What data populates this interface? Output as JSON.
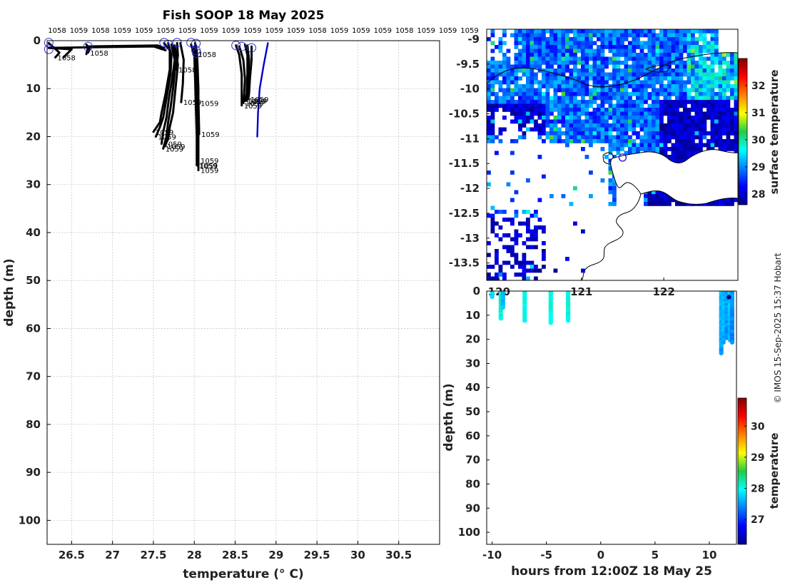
{
  "title": "Fish SOOP 18 May 2025",
  "credit": "© IMOS 15-Sep-2025 15:37 Hobart",
  "colors": {
    "profile": "#000000",
    "highlight_profile": "#0000cc",
    "start_marker": "#2a2ad0",
    "land": "#ffffff",
    "coast": "#000000"
  },
  "chart_data": [
    {
      "id": "profile-panel",
      "type": "line",
      "xlabel": "temperature (° C)",
      "ylabel": "depth (m)",
      "xlim": [
        26.2,
        31.0
      ],
      "ylim": [
        0,
        105
      ],
      "y_reversed": true,
      "grid": true,
      "x_ticks": [
        26.5,
        27,
        27.5,
        28,
        28.5,
        29,
        29.5,
        30,
        30.5
      ],
      "x_tick_labels": [
        "26.5",
        "27",
        "27.5",
        "28",
        "28.5",
        "29",
        "29.5",
        "30",
        "30.5"
      ],
      "y_ticks": [
        0,
        10,
        20,
        30,
        40,
        50,
        60,
        70,
        80,
        90,
        100
      ],
      "top_labels": [
        "1058",
        "1059",
        "1058",
        "1059",
        "1059",
        "1059",
        "1059",
        "1059",
        "1059",
        "1059",
        "1059",
        "1059",
        "1058",
        "1059",
        "1059",
        "1059",
        "1058",
        "1059",
        "1059",
        "1059"
      ],
      "series": [
        {
          "x": [
            26.22,
            26.35,
            26.3
          ],
          "y": [
            0.5,
            2.5,
            3.5
          ],
          "end_label": "1058"
        },
        {
          "x": [
            26.22,
            26.5,
            26.4
          ],
          "y": [
            1.5,
            1.8,
            3.5
          ],
          "end_label": ""
        },
        {
          "x": [
            26.68,
            26.72,
            26.7
          ],
          "y": [
            0.8,
            1.8,
            2.5
          ],
          "end_label": "1058"
        },
        {
          "x": [
            26.7,
            26.68
          ],
          "y": [
            1.5,
            2.8
          ],
          "end_label": ""
        },
        {
          "x": [
            26.7,
            27.55,
            27.63
          ],
          "y": [
            1.2,
            1.0,
            1.5
          ],
          "end_label": ""
        },
        {
          "x": [
            26.22,
            27.5,
            27.65
          ],
          "y": [
            1.5,
            1.2,
            2.0
          ],
          "end_label": ""
        },
        {
          "x": [
            27.63,
            27.7,
            27.7,
            27.65,
            27.6,
            27.58,
            27.5
          ],
          "y": [
            0.5,
            2,
            6,
            11,
            15,
            17,
            19
          ],
          "end_label": "1059"
        },
        {
          "x": [
            27.68,
            27.72,
            27.71,
            27.66,
            27.62,
            27.58,
            27.53
          ],
          "y": [
            0.5,
            3,
            7,
            12,
            16,
            18,
            20
          ],
          "end_label": "1059"
        },
        {
          "x": [
            27.72,
            27.76,
            27.73,
            27.69,
            27.66,
            27.62,
            27.6
          ],
          "y": [
            0.8,
            4,
            8,
            12,
            16,
            19,
            21.5
          ],
          "end_label": "1059"
        },
        {
          "x": [
            27.74,
            27.77,
            27.74,
            27.71,
            27.68,
            27.66,
            27.62
          ],
          "y": [
            1.0,
            5,
            10,
            14,
            17,
            20,
            22.5
          ],
          "end_label": "1059"
        },
        {
          "x": [
            27.76,
            27.8,
            27.77,
            27.74,
            27.7,
            27.68,
            27.64
          ],
          "y": [
            1.0,
            5,
            10,
            15,
            18,
            20.5,
            22.0
          ],
          "end_label": "1059"
        },
        {
          "x": [
            27.79,
            27.8,
            27.78
          ],
          "y": [
            0.5,
            3,
            6.0
          ],
          "end_label": "1058"
        },
        {
          "x": [
            27.83,
            27.87,
            27.86,
            27.84
          ],
          "y": [
            0.5,
            4,
            9,
            12.8
          ],
          "end_label": "1059"
        },
        {
          "x": [
            27.96,
            28.0,
            28.01,
            28.02,
            28.03,
            28.03
          ],
          "y": [
            0.8,
            3,
            8,
            14,
            20,
            26.0
          ],
          "end_label": "1059"
        },
        {
          "x": [
            28.01,
            28.02,
            28.03,
            28.03,
            28.04,
            28.04
          ],
          "y": [
            0.5,
            3,
            8,
            14,
            20,
            26.0
          ],
          "end_label": "1059"
        },
        {
          "x": [
            28.02,
            28.03,
            28.04,
            28.05,
            28.05,
            28.05
          ],
          "y": [
            1.0,
            4,
            9,
            15,
            21,
            27.0
          ],
          "end_label": "1059"
        },
        {
          "x": [
            28.03,
            28.04,
            28.05,
            28.05,
            28.05,
            28.05
          ],
          "y": [
            2.0,
            5,
            10,
            16,
            20,
            25.0
          ],
          "end_label": "1059"
        },
        {
          "x": [
            28.0,
            28.03,
            28.04,
            28.05
          ],
          "y": [
            1.5,
            5,
            10,
            13.0
          ],
          "end_label": "1059"
        },
        {
          "x": [
            28.02,
            28.04,
            28.05,
            28.06
          ],
          "y": [
            2.5,
            6,
            12,
            19.5
          ],
          "end_label": "1059"
        },
        {
          "x": [
            28.03,
            28.02
          ],
          "y": [
            2.5,
            2.8
          ],
          "end_label": "1058"
        },
        {
          "x": [
            28.51,
            28.55,
            28.58,
            28.58,
            28.58
          ],
          "y": [
            1.0,
            3,
            7,
            11,
            13.5
          ],
          "end_label": "1059"
        },
        {
          "x": [
            28.55,
            28.6,
            28.62,
            28.61,
            28.6
          ],
          "y": [
            1.2,
            4,
            8,
            11,
            13.0
          ],
          "end_label": "1059"
        },
        {
          "x": [
            28.62,
            28.65,
            28.65,
            28.64,
            28.62
          ],
          "y": [
            0.8,
            3,
            7,
            11,
            12.6
          ],
          "end_label": "1059"
        },
        {
          "x": [
            28.65,
            28.67,
            28.66,
            28.65,
            28.64
          ],
          "y": [
            1.0,
            4,
            8,
            11,
            12.5
          ],
          "end_label": "1059"
        },
        {
          "x": [
            28.7,
            28.7,
            28.68,
            28.67,
            28.66
          ],
          "y": [
            1.2,
            4,
            8,
            11,
            12.2
          ],
          "end_label": "1059"
        },
        {
          "x": [
            28.9,
            28.85,
            28.8,
            28.78,
            28.77
          ],
          "y": [
            0.5,
            5,
            10,
            15,
            20.0
          ],
          "end_label": "",
          "highlight": true
        }
      ],
      "start_markers": [
        {
          "x": 26.22,
          "y": 0.4
        },
        {
          "x": 26.22,
          "y": 1.8
        },
        {
          "x": 26.7,
          "y": 1.2
        },
        {
          "x": 27.63,
          "y": 0.4
        },
        {
          "x": 27.68,
          "y": 0.8
        },
        {
          "x": 27.79,
          "y": 0.4
        },
        {
          "x": 27.96,
          "y": 0.4
        },
        {
          "x": 28.02,
          "y": 0.6
        },
        {
          "x": 28.02,
          "y": 2.0
        },
        {
          "x": 28.03,
          "y": 2.6
        },
        {
          "x": 28.51,
          "y": 1.0
        },
        {
          "x": 28.58,
          "y": 1.2
        },
        {
          "x": 28.7,
          "y": 1.5
        }
      ]
    },
    {
      "id": "map-panel",
      "type": "heatmap",
      "xlim": [
        119.85,
        122.9
      ],
      "ylim": [
        -13.85,
        -8.8
      ],
      "x_ticks": [
        120,
        121,
        122
      ],
      "y_ticks": [
        -9,
        -9.5,
        -10,
        -10.5,
        -11,
        -11.5,
        -12,
        -12.5,
        -13,
        -13.5
      ],
      "y_tick_labels": [
        "-9",
        "-9.5",
        "-10",
        "-10.5",
        "-11",
        "-11.5",
        "-12",
        "-12.5",
        "-13",
        "-13.5"
      ],
      "colorbar_label": "surface temperature",
      "colorbar_range": [
        27.6,
        33.0
      ],
      "colorbar_ticks": [
        28,
        29,
        30,
        31,
        32
      ],
      "station_marker": {
        "lon": 121.5,
        "lat": -11.38
      }
    },
    {
      "id": "section-panel",
      "type": "scatter",
      "xlabel": "hours from 12:00Z 18 May 25",
      "ylabel": "depth (m)",
      "xlim": [
        -10.5,
        12.5
      ],
      "ylim": [
        0,
        105
      ],
      "y_reversed": true,
      "x_ticks": [
        -10,
        -5,
        0,
        5,
        10
      ],
      "x_tick_labels": [
        "-10",
        "-5",
        "0",
        "5",
        "10"
      ],
      "y_ticks": [
        0,
        10,
        20,
        30,
        40,
        50,
        60,
        70,
        80,
        90,
        100
      ],
      "colorbar_label": "temperature",
      "colorbar_range": [
        26.2,
        30.9
      ],
      "colorbar_ticks": [
        27,
        28,
        29,
        30
      ],
      "casts": [
        {
          "hour": -10.0,
          "max_depth": 3,
          "temp": 27.9
        },
        {
          "hour": -9.2,
          "max_depth": 12,
          "temp": 28.1
        },
        {
          "hour": -9.0,
          "max_depth": 7,
          "temp": 27.7
        },
        {
          "hour": -7.0,
          "max_depth": 13,
          "temp": 28.05
        },
        {
          "hour": -4.6,
          "max_depth": 14,
          "temp": 28.1
        },
        {
          "hour": -3.0,
          "max_depth": 13,
          "temp": 28.1
        },
        {
          "hour": 11.1,
          "max_depth": 26,
          "temp": 27.65
        },
        {
          "hour": 11.3,
          "max_depth": 22,
          "temp": 27.7
        },
        {
          "hour": 11.6,
          "max_depth": 20,
          "temp": 27.55
        },
        {
          "hour": 11.9,
          "max_depth": 21,
          "temp": 27.7
        },
        {
          "hour": 12.1,
          "max_depth": 22,
          "temp": 27.5
        }
      ]
    }
  ]
}
